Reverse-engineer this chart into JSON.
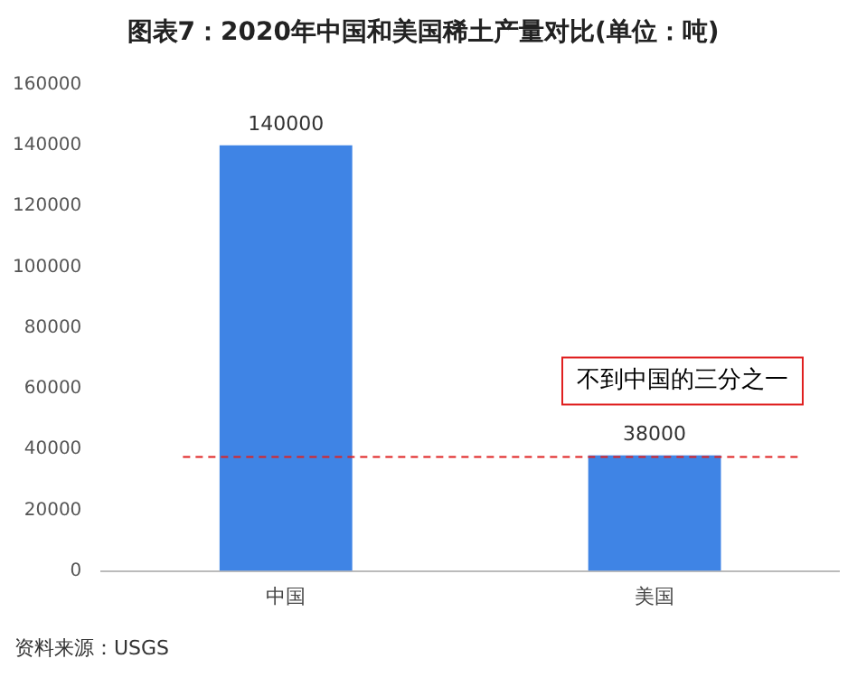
{
  "chart_data": {
    "type": "bar",
    "title": "图表7：2020年中国和美国稀土产量对比(单位：吨)",
    "categories": [
      "中国",
      "美国"
    ],
    "values": [
      140000,
      38000
    ],
    "color": "#3f84e5",
    "ylim": [
      0,
      160000
    ],
    "yticks": [
      0,
      20000,
      40000,
      60000,
      80000,
      100000,
      120000,
      140000,
      160000
    ],
    "grid": false,
    "legend": false,
    "data_labels": true,
    "ref_lines": [
      {
        "axis": "y",
        "value": 37500,
        "label": "不到中国的三分之一",
        "color": "#e02020",
        "line_style": "dashed"
      }
    ],
    "annotations": [
      "资料来源：USGS"
    ]
  }
}
